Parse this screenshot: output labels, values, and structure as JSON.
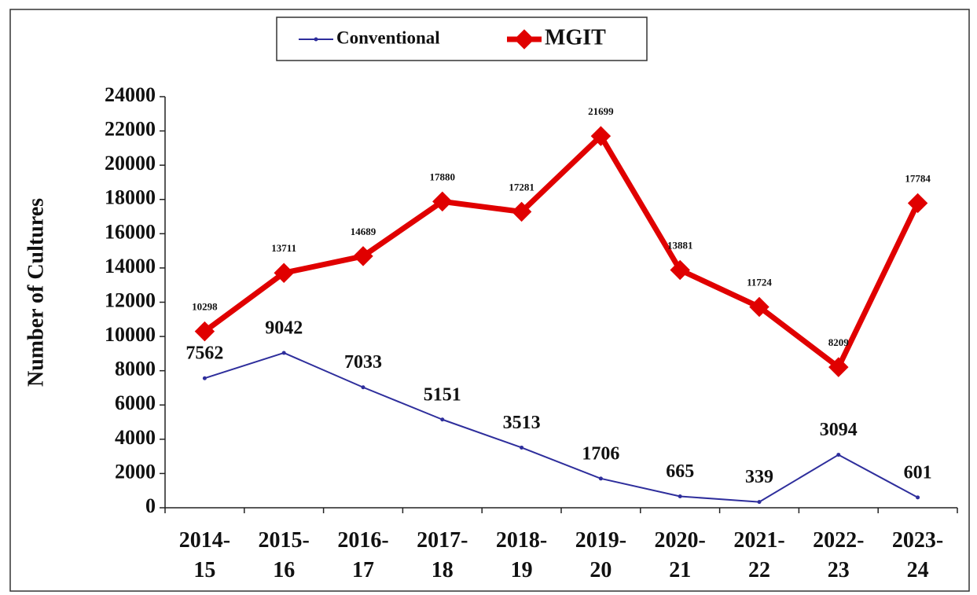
{
  "chart_data": {
    "type": "line",
    "categories": [
      "2014-15",
      "2015-16",
      "2016-17",
      "2017-18",
      "2018-19",
      "2019-20",
      "2020-21",
      "2021-22",
      "2022-23",
      "2023-24"
    ],
    "y_label": "Number of Cultures",
    "series": [
      {
        "name": "Conventional",
        "color": "#2e2e9c",
        "values": [
          7562,
          9042,
          7033,
          5151,
          3513,
          1706,
          665,
          339,
          3094,
          601
        ]
      },
      {
        "name": "MGIT",
        "color": "#e00000",
        "values": [
          10298,
          13711,
          14689,
          17880,
          17281,
          21699,
          13881,
          11724,
          8209,
          17784
        ]
      }
    ],
    "ylim": [
      0,
      24000
    ],
    "yticks": [
      0,
      2000,
      4000,
      6000,
      8000,
      10000,
      12000,
      14000,
      16000,
      18000,
      20000,
      22000,
      24000
    ]
  }
}
